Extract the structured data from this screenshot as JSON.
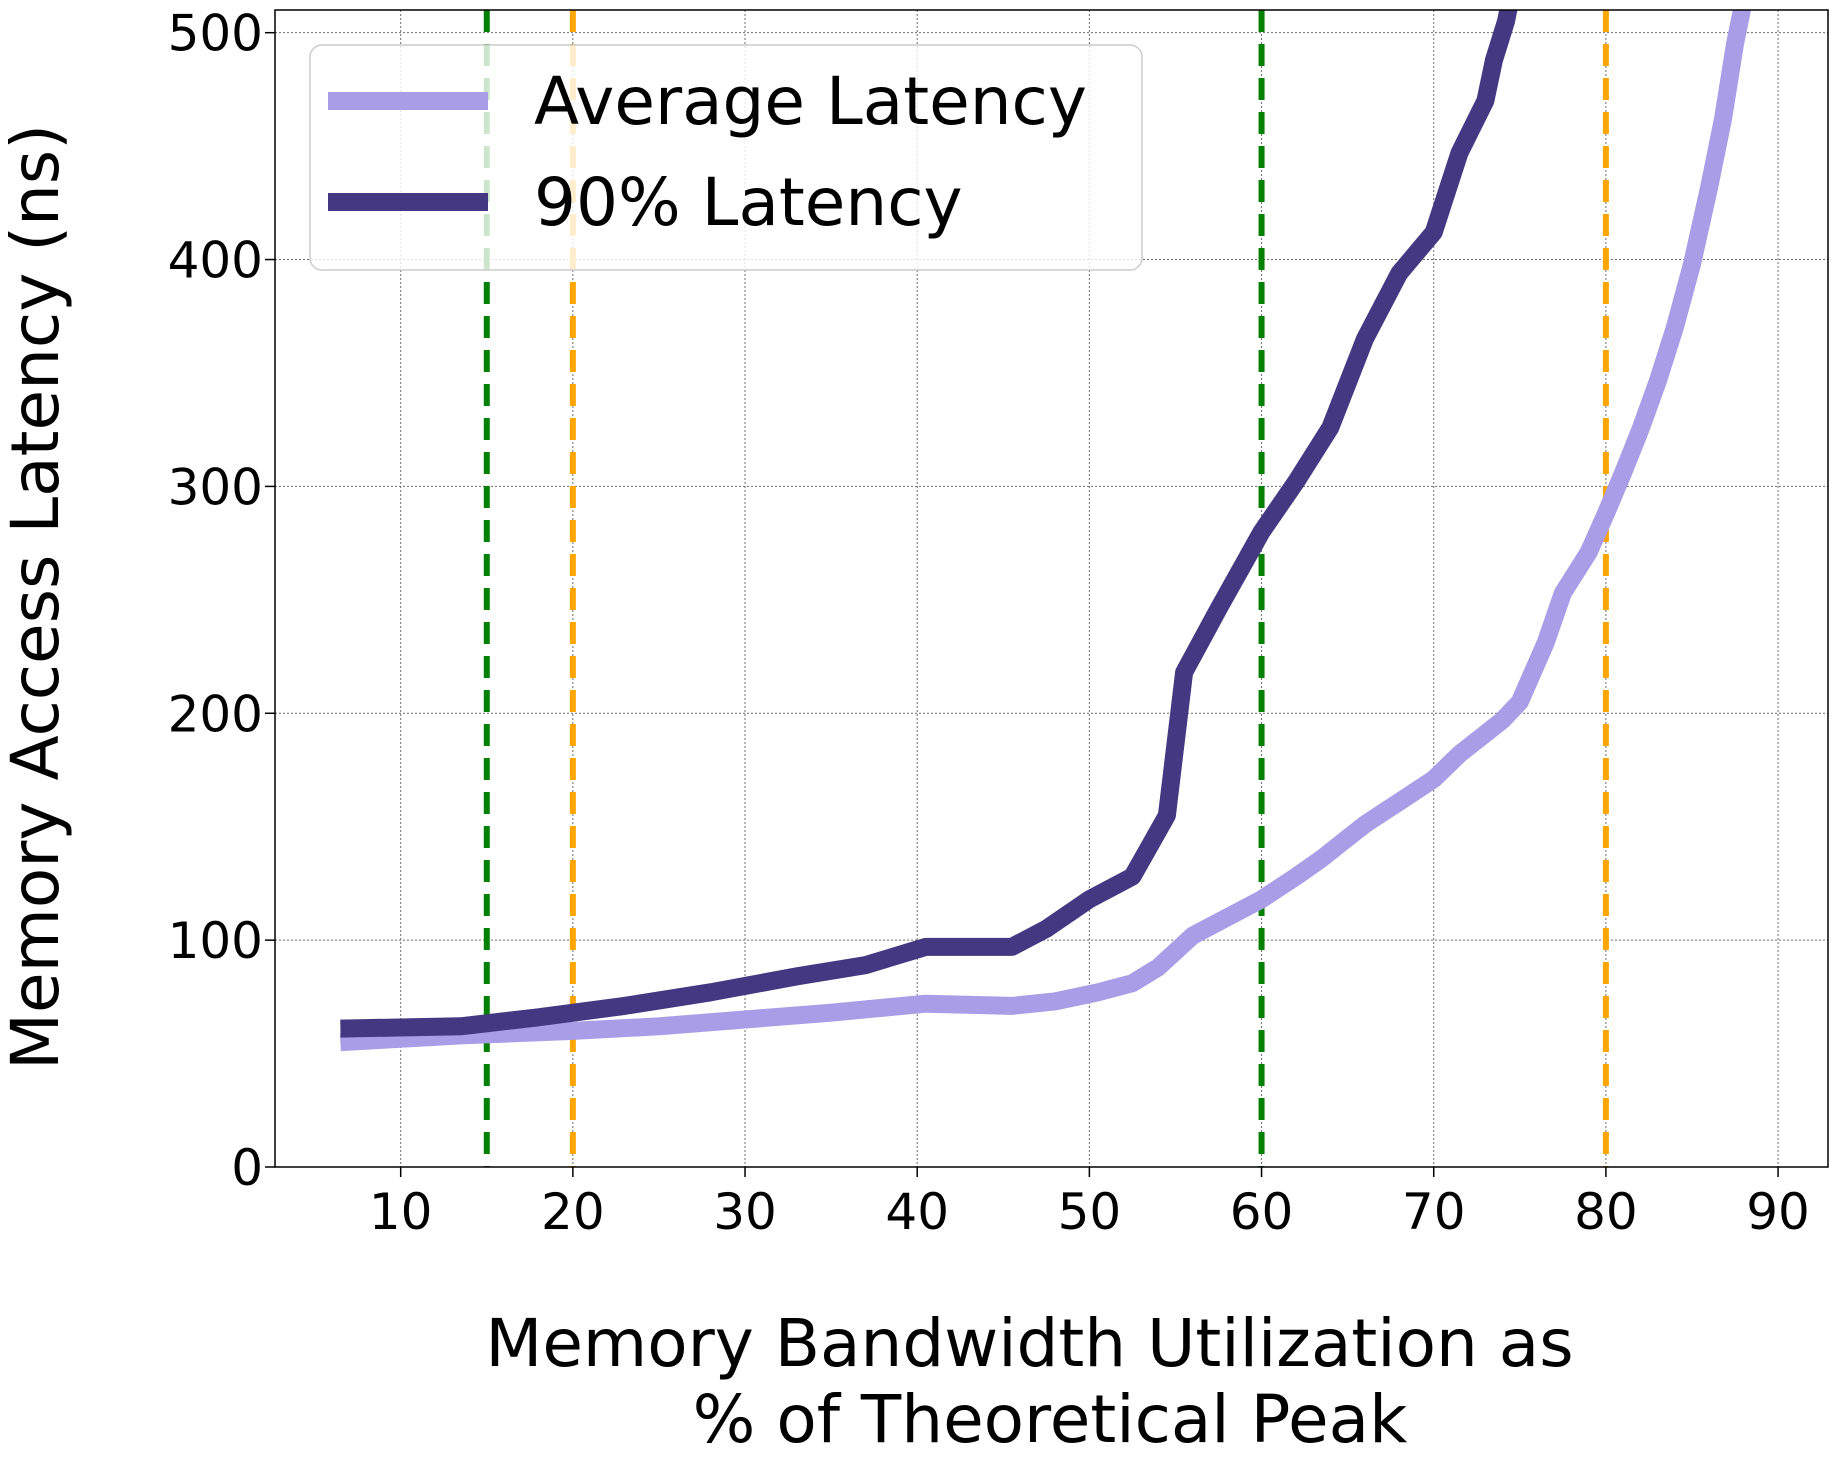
{
  "chart_data": {
    "type": "line",
    "xlabel_lines": [
      "Memory Bandwidth Utilization as",
      "% of Theoretical Peak"
    ],
    "ylabel": "Memory Access Latency (ns)",
    "xlim": [
      2.7,
      92.9
    ],
    "ylim": [
      0,
      510
    ],
    "x_ticks": [
      10,
      20,
      30,
      40,
      50,
      60,
      70,
      80,
      90
    ],
    "y_ticks": [
      0,
      100,
      200,
      300,
      400,
      500
    ],
    "grid": true,
    "legend_position": "top-left",
    "series": [
      {
        "name": "Average Latency",
        "color": "#a89de6",
        "x": [
          6.5,
          13.5,
          20,
          25,
          30,
          35,
          40.5,
          45.5,
          48,
          50.5,
          52.5,
          54,
          55,
          56,
          58,
          60,
          62,
          63.5,
          65,
          66,
          68,
          70,
          71.5,
          73,
          74,
          75,
          76.5,
          77.5,
          79,
          80,
          81,
          82,
          83,
          84,
          85,
          86,
          86.8,
          87.5,
          87.9,
          88.2,
          88.4
        ],
        "y": [
          55,
          58,
          60,
          62,
          65,
          68,
          72,
          71,
          73,
          77,
          81,
          88,
          95,
          102,
          110,
          118,
          128,
          136,
          145,
          151,
          161,
          171,
          182,
          191,
          197,
          205,
          231,
          253,
          271,
          288,
          306,
          325,
          346,
          370,
          398,
          432,
          462,
          495,
          510,
          525,
          540
        ],
        "dash": "solid"
      },
      {
        "name": "90% Latency",
        "color": "#433881",
        "x": [
          6.5,
          13.5,
          18,
          23,
          28,
          33,
          37,
          40.5,
          45.5,
          47.5,
          50,
          52.5,
          54.5,
          55.5,
          57.5,
          60,
          62,
          64,
          66,
          68,
          70,
          71.5,
          73,
          73.5,
          74.2,
          74.6,
          75,
          75.3
        ],
        "y": [
          61,
          62,
          66,
          71,
          77,
          84,
          89,
          97,
          97,
          105,
          118,
          128,
          155,
          218,
          246,
          280,
          302,
          326,
          365,
          394,
          412,
          447,
          470,
          488,
          505,
          520,
          540,
          560
        ],
        "dash": "solid"
      }
    ],
    "reference_lines": [
      {
        "x": 15,
        "color": "#008000",
        "style": "dashed"
      },
      {
        "x": 20,
        "color": "#ffa500",
        "style": "dashed"
      },
      {
        "x": 60,
        "color": "#008000",
        "style": "dashed"
      },
      {
        "x": 80,
        "color": "#ffa500",
        "style": "dashed"
      }
    ]
  }
}
